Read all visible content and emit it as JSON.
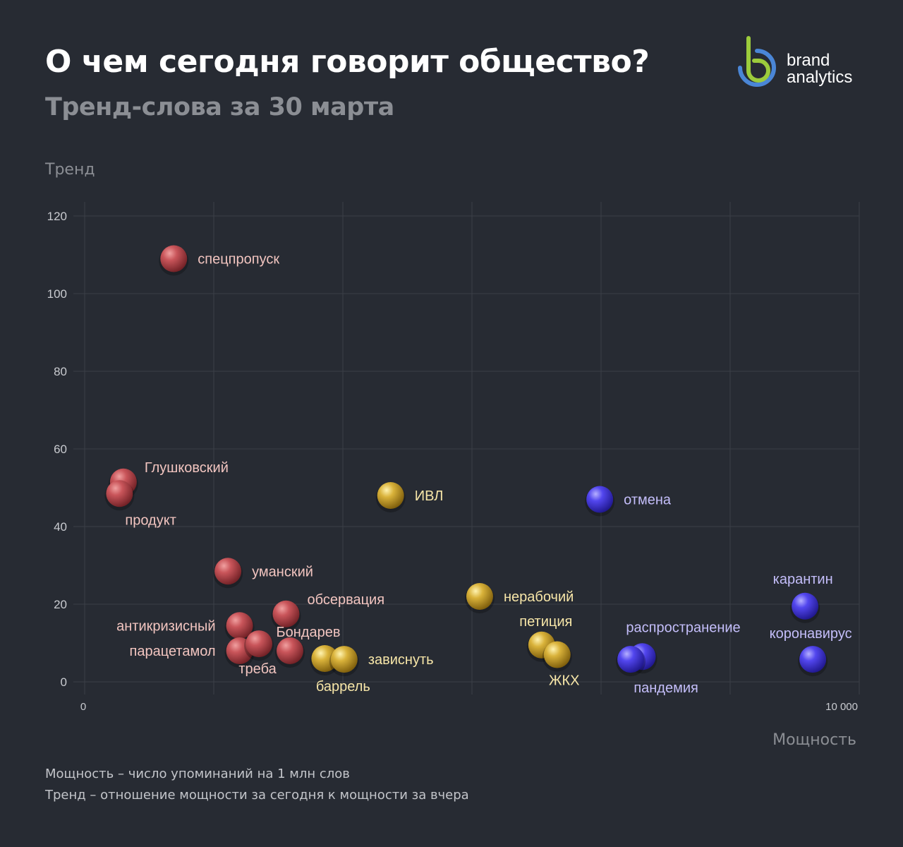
{
  "header": {
    "title": "О чем сегодня говорит общество?",
    "subtitle": "Тренд-слова за 30 марта"
  },
  "logo": {
    "line1": "brand",
    "line2": "analytics",
    "colors": {
      "blue": "#4a86d6",
      "green": "#9ccc3c"
    }
  },
  "footnotes": {
    "line1": "Мощность – число упоминаний на 1 млн слов",
    "line2": "Тренд – отношение мощности за сегодня к мощности за вчера"
  },
  "colors": {
    "background": "#272b33",
    "grid": "#3b3f47",
    "red": "#b8474a",
    "red_label": "#f2c5c0",
    "yellow": "#d6ac2c",
    "yellow_label": "#f7e6a8",
    "blue": "#4a3fe0",
    "blue_label": "#c4befa"
  },
  "chart_data": {
    "type": "scatter",
    "title": "Тренд-слова за 30 марта",
    "xlabel": "Мощность",
    "ylabel": "Тренд",
    "xlim": [
      0,
      10000
    ],
    "ylim": [
      0,
      120
    ],
    "x_ticks": [
      0,
      10000
    ],
    "x_tick_labels": [
      "0",
      "10 000"
    ],
    "y_ticks": [
      0,
      20,
      40,
      60,
      80,
      100,
      120
    ],
    "grid": true,
    "points": [
      {
        "label": "спецпропуск",
        "x": 1150,
        "y": 109,
        "group": "red",
        "label_pos": "right"
      },
      {
        "label": "Глушковский",
        "x": 500,
        "y": 51.5,
        "group": "red",
        "label_pos": "upper-right"
      },
      {
        "label": "продукт",
        "x": 450,
        "y": 48.5,
        "group": "red",
        "label_pos": "below-right"
      },
      {
        "label": "уманский",
        "x": 1850,
        "y": 28.5,
        "group": "red",
        "label_pos": "right"
      },
      {
        "label": "антикризисный",
        "x": 2000,
        "y": 14.5,
        "group": "red",
        "label_pos": "left"
      },
      {
        "label": "парацетамол",
        "x": 2000,
        "y": 8,
        "group": "red",
        "label_pos": "left"
      },
      {
        "label": "треба",
        "x": 2250,
        "y": 9.8,
        "group": "red",
        "label_pos": "below"
      },
      {
        "label": "обсервация",
        "x": 2600,
        "y": 17.5,
        "group": "red",
        "label_pos": "upper-right"
      },
      {
        "label": "Бондарев",
        "x": 2650,
        "y": 8,
        "group": "red",
        "label_pos": "above"
      },
      {
        "label": "ИВЛ",
        "x": 3950,
        "y": 48,
        "group": "yellow",
        "label_pos": "right"
      },
      {
        "label": "нерабочий",
        "x": 5100,
        "y": 22,
        "group": "yellow",
        "label_pos": "right"
      },
      {
        "label": "баррель",
        "x": 3100,
        "y": 6,
        "group": "yellow",
        "label_pos": "below"
      },
      {
        "label": "зависнуть",
        "x": 3350,
        "y": 5.8,
        "group": "yellow",
        "label_pos": "right"
      },
      {
        "label": "петиция",
        "x": 5900,
        "y": 9.5,
        "group": "yellow",
        "label_pos": "above"
      },
      {
        "label": "ЖКХ",
        "x": 6100,
        "y": 7,
        "group": "yellow",
        "label_pos": "below"
      },
      {
        "label": "отмена",
        "x": 6650,
        "y": 47,
        "group": "blue",
        "label_pos": "right"
      },
      {
        "label": "распространение",
        "x": 7200,
        "y": 6.5,
        "group": "blue",
        "label_pos": "above"
      },
      {
        "label": "пандемия",
        "x": 7050,
        "y": 5.8,
        "group": "blue",
        "label_pos": "below"
      },
      {
        "label": "карантин",
        "x": 9300,
        "y": 19.5,
        "group": "blue",
        "label_pos": "above"
      },
      {
        "label": "коронавирус",
        "x": 9400,
        "y": 5.8,
        "group": "blue",
        "label_pos": "above"
      }
    ]
  }
}
